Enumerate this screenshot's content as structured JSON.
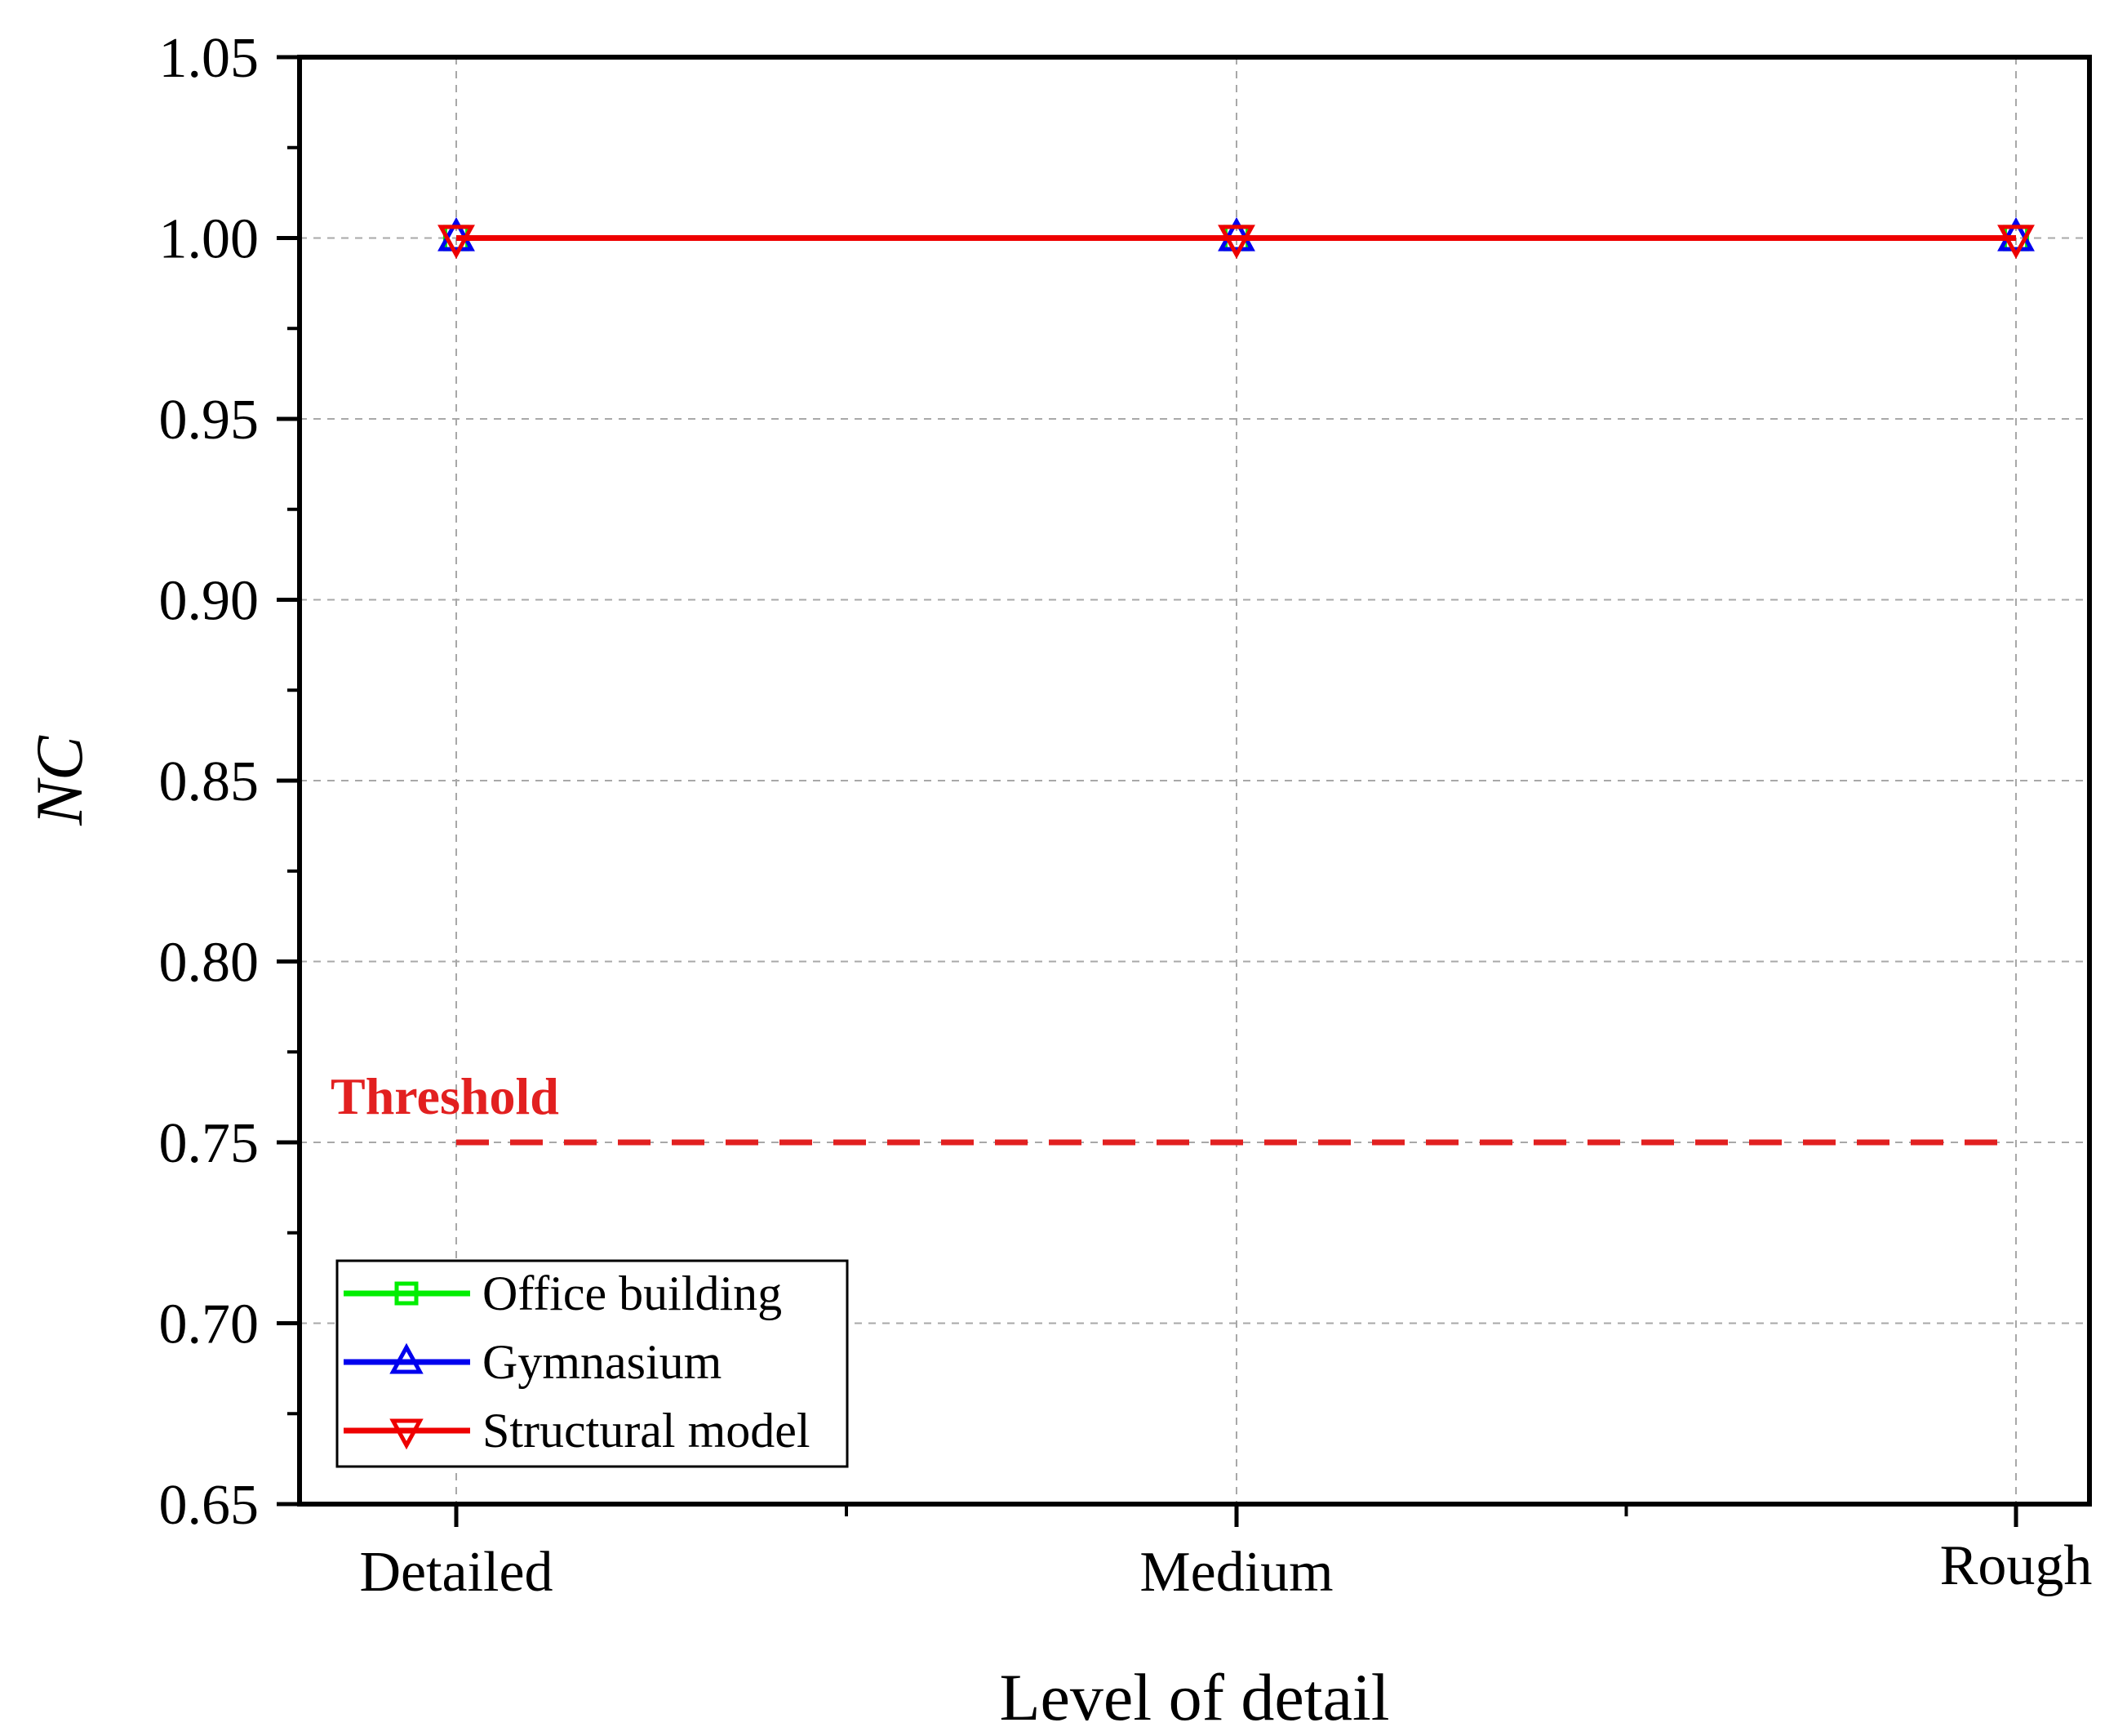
{
  "chart_data": {
    "type": "line",
    "title": "",
    "xlabel": "Level of detail",
    "ylabel": "NC",
    "categories": [
      "Detailed",
      "Medium",
      "Rough"
    ],
    "ylim": [
      0.65,
      1.05
    ],
    "yticks": [
      "0.65",
      "0.70",
      "0.75",
      "0.80",
      "0.85",
      "0.90",
      "0.95",
      "1.00",
      "1.05"
    ],
    "grid": true,
    "legend_position": "bottom-left",
    "series": [
      {
        "name": "Office building",
        "values": [
          1.0,
          1.0,
          1.0
        ],
        "color": "#00ee00",
        "marker": "square"
      },
      {
        "name": "Gymnasium",
        "values": [
          1.0,
          1.0,
          1.0
        ],
        "color": "#0000ee",
        "marker": "triangle-up"
      },
      {
        "name": "Structural model",
        "values": [
          1.0,
          1.0,
          1.0
        ],
        "color": "#ee0000",
        "marker": "triangle-down"
      }
    ],
    "threshold": {
      "label": "Threshold",
      "value": 0.75,
      "color": "#e22020"
    }
  }
}
